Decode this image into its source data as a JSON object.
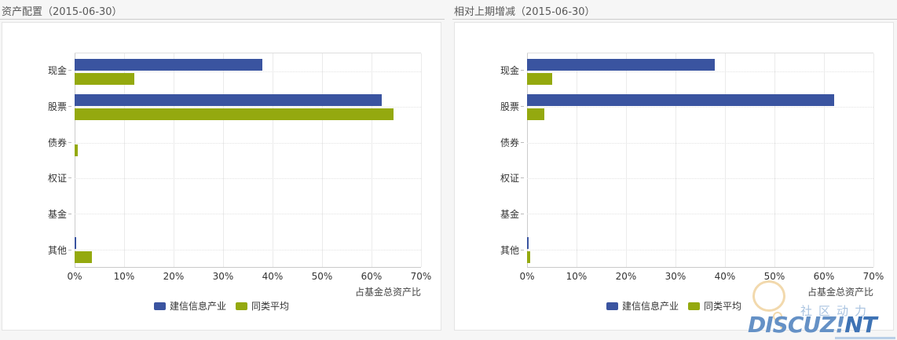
{
  "page": {
    "background": "#f6f6f6"
  },
  "chart_data": [
    {
      "type": "bar",
      "orientation": "horizontal",
      "title": "资产配置（2015-06-30）",
      "xlabel": "占基金总资产比",
      "xlim": [
        0,
        70
      ],
      "xticks": [
        "0%",
        "10%",
        "20%",
        "30%",
        "40%",
        "50%",
        "60%",
        "70%"
      ],
      "grid": true,
      "legend_position": "bottom-center",
      "categories": [
        "现金",
        "股票",
        "债券",
        "权证",
        "基金",
        "其他"
      ],
      "series": [
        {
          "name": "建信信息产业",
          "color": "#3a54a0",
          "values": [
            38,
            62,
            0,
            0,
            0,
            0.3
          ]
        },
        {
          "name": "同类平均",
          "color": "#94a90f",
          "values": [
            12,
            64.5,
            0.6,
            0,
            0,
            3.5
          ]
        }
      ]
    },
    {
      "type": "bar",
      "orientation": "horizontal",
      "title": "相对上期增减（2015-06-30）",
      "xlabel": "占基金总资产比",
      "xlim": [
        0,
        70
      ],
      "xticks": [
        "0%",
        "10%",
        "20%",
        "30%",
        "40%",
        "50%",
        "60%",
        "70%"
      ],
      "grid": true,
      "legend_position": "bottom-center",
      "categories": [
        "现金",
        "股票",
        "债券",
        "权证",
        "基金",
        "其他"
      ],
      "series": [
        {
          "name": "建信信息产业",
          "color": "#3a54a0",
          "values": [
            38,
            62,
            0,
            0,
            0,
            0.3
          ]
        },
        {
          "name": "同类平均",
          "color": "#94a90f",
          "values": [
            5,
            3.5,
            0,
            0,
            0,
            0.6
          ]
        }
      ]
    }
  ],
  "watermark": {
    "cn_text": "社区动力",
    "logo_text_1": "DISCUZ!",
    "logo_text_2": "NT",
    "bubble_color": "#f2d9ad",
    "cn_color": "#a9c3e0",
    "logo_color_1": "#6591c6",
    "logo_color_2": "#3e73b5"
  }
}
